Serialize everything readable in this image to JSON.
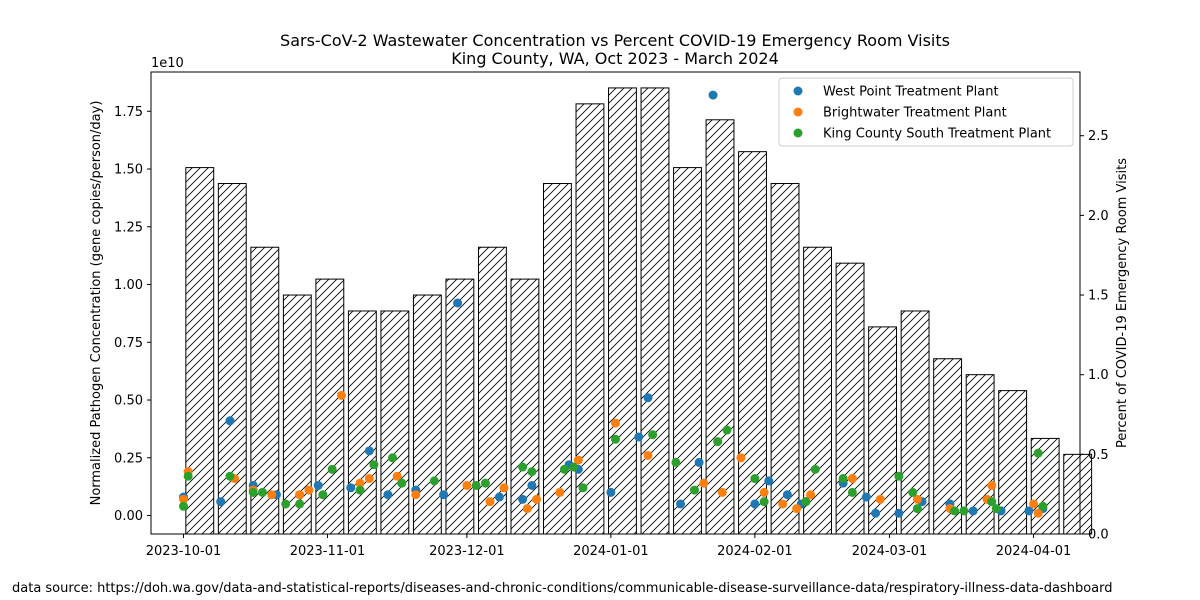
{
  "page": {
    "source_note": "data source: https://doh.wa.gov/data-and-statistical-reports/diseases-and-chronic-conditions/communicable-disease-surveillance-data/respiratory-illness-data-dashboard"
  },
  "chart_data": {
    "type": "bar+scatter",
    "title": "Sars-CoV-2 Wastewater Concentration vs Percent COVID-19 Emergency Room Visits",
    "subtitle": "King County, WA, Oct 2023 - March 2024",
    "ylabel_left": "Normalized Pathogen Concentration (gene copies/person/day)",
    "ylabel_right": "Percent of COVID-19 Emergency Room Visits",
    "left_axis_multiplier": "1e10",
    "left_ylim": [
      -0.08,
      1.92
    ],
    "right_ylim": [
      0,
      2.9
    ],
    "x_range": [
      "2023-09-24",
      "2024-04-11"
    ],
    "x_ticks": [
      "2023-10-01",
      "2023-11-01",
      "2023-12-01",
      "2024-01-01",
      "2024-02-01",
      "2024-03-01",
      "2024-04-01"
    ],
    "left_ticks": [
      "0.00",
      "0.25",
      "0.50",
      "0.75",
      "1.00",
      "1.25",
      "1.50",
      "1.75"
    ],
    "right_ticks": [
      "0.0",
      "0.5",
      "1.0",
      "1.5",
      "2.0",
      "2.5"
    ],
    "grid": false,
    "legend_position": "top-right",
    "er_visits": {
      "week_start": [
        "2023-10-01",
        "2023-10-08",
        "2023-10-15",
        "2023-10-22",
        "2023-10-29",
        "2023-11-05",
        "2023-11-12",
        "2023-11-19",
        "2023-11-26",
        "2023-12-03",
        "2023-12-10",
        "2023-12-17",
        "2023-12-24",
        "2023-12-31",
        "2024-01-07",
        "2024-01-14",
        "2024-01-21",
        "2024-01-28",
        "2024-02-04",
        "2024-02-11",
        "2024-02-18",
        "2024-02-25",
        "2024-03-03",
        "2024-03-10",
        "2024-03-17",
        "2024-03-24",
        "2024-03-31",
        "2024-04-07"
      ],
      "values": [
        2.3,
        2.2,
        1.8,
        1.5,
        1.6,
        1.4,
        1.4,
        1.5,
        1.6,
        1.8,
        1.6,
        2.2,
        2.7,
        2.8,
        2.8,
        2.3,
        2.6,
        2.4,
        2.2,
        1.8,
        1.7,
        1.3,
        1.4,
        1.1,
        1.0,
        0.9,
        0.6,
        0.5
      ]
    },
    "series": [
      {
        "name": "West Point Treatment Plant",
        "color": "#1f77b4",
        "dates": [
          "2023-10-01",
          "2023-10-09",
          "2023-10-11",
          "2023-10-16",
          "2023-10-21",
          "2023-10-26",
          "2023-10-30",
          "2023-11-06",
          "2023-11-10",
          "2023-11-14",
          "2023-11-20",
          "2023-11-26",
          "2023-11-29",
          "2023-12-08",
          "2023-12-13",
          "2023-12-15",
          "2023-12-23",
          "2023-12-25",
          "2024-01-01",
          "2024-01-07",
          "2024-01-09",
          "2024-01-16",
          "2024-01-20",
          "2024-01-23",
          "2024-02-01",
          "2024-02-04",
          "2024-02-08",
          "2024-02-11",
          "2024-02-20",
          "2024-02-25",
          "2024-02-27",
          "2024-03-03",
          "2024-03-08",
          "2024-03-14",
          "2024-03-19",
          "2024-03-25",
          "2024-03-31",
          "2024-04-03"
        ],
        "values": [
          0.08,
          0.06,
          0.41,
          0.13,
          0.09,
          0.09,
          0.13,
          0.12,
          0.28,
          0.09,
          0.11,
          0.09,
          0.92,
          0.08,
          0.07,
          0.13,
          0.22,
          0.2,
          0.1,
          0.34,
          0.51,
          0.05,
          0.23,
          1.82,
          0.05,
          0.15,
          0.09,
          0.05,
          0.14,
          0.08,
          0.01,
          0.01,
          0.06,
          0.05,
          0.02,
          0.02,
          0.02,
          0.03
        ]
      },
      {
        "name": "Brightwater Treatment Plant",
        "color": "#ff7f0e",
        "dates": [
          "2023-10-01",
          "2023-10-02",
          "2023-10-12",
          "2023-10-16",
          "2023-10-20",
          "2023-10-26",
          "2023-10-28",
          "2023-11-04",
          "2023-11-08",
          "2023-11-10",
          "2023-11-16",
          "2023-11-20",
          "2023-12-01",
          "2023-12-06",
          "2023-12-09",
          "2023-12-14",
          "2023-12-16",
          "2023-12-21",
          "2023-12-25",
          "2024-01-02",
          "2024-01-09",
          "2024-01-21",
          "2024-01-25",
          "2024-01-29",
          "2024-02-03",
          "2024-02-07",
          "2024-02-10",
          "2024-02-13",
          "2024-02-22",
          "2024-02-28",
          "2024-03-07",
          "2024-03-14",
          "2024-03-22",
          "2024-03-23",
          "2024-04-01",
          "2024-04-02"
        ],
        "values": [
          0.07,
          0.19,
          0.16,
          0.11,
          0.09,
          0.09,
          0.11,
          0.52,
          0.14,
          0.16,
          0.17,
          0.09,
          0.13,
          0.06,
          0.12,
          0.03,
          0.07,
          0.1,
          0.24,
          0.4,
          0.26,
          0.14,
          0.1,
          0.25,
          0.1,
          0.05,
          0.03,
          0.09,
          0.16,
          0.07,
          0.07,
          0.03,
          0.07,
          0.13,
          0.05,
          0.01
        ]
      },
      {
        "name": "King County South Treatment Plant",
        "color": "#2ca02c",
        "dates": [
          "2023-10-01",
          "2023-10-02",
          "2023-10-11",
          "2023-10-16",
          "2023-10-18",
          "2023-10-23",
          "2023-10-26",
          "2023-10-31",
          "2023-11-02",
          "2023-11-08",
          "2023-11-11",
          "2023-11-15",
          "2023-11-17",
          "2023-11-24",
          "2023-12-03",
          "2023-12-05",
          "2023-12-13",
          "2023-12-15",
          "2023-12-22",
          "2023-12-24",
          "2023-12-26",
          "2024-01-02",
          "2024-01-10",
          "2024-01-15",
          "2024-01-19",
          "2024-01-24",
          "2024-01-26",
          "2024-02-01",
          "2024-02-03",
          "2024-02-12",
          "2024-02-14",
          "2024-02-20",
          "2024-02-22",
          "2024-03-03",
          "2024-03-06",
          "2024-03-07",
          "2024-03-15",
          "2024-03-17",
          "2024-03-23",
          "2024-03-24",
          "2024-04-02",
          "2024-04-03"
        ],
        "values": [
          0.04,
          0.17,
          0.17,
          0.1,
          0.1,
          0.05,
          0.05,
          0.09,
          0.2,
          0.11,
          0.22,
          0.25,
          0.14,
          0.15,
          0.13,
          0.14,
          0.21,
          0.19,
          0.2,
          0.21,
          0.12,
          0.33,
          0.35,
          0.23,
          0.11,
          0.32,
          0.37,
          0.16,
          0.06,
          0.06,
          0.2,
          0.16,
          0.1,
          0.17,
          0.1,
          0.03,
          0.02,
          0.02,
          0.06,
          0.03,
          0.27,
          0.04
        ]
      }
    ]
  }
}
